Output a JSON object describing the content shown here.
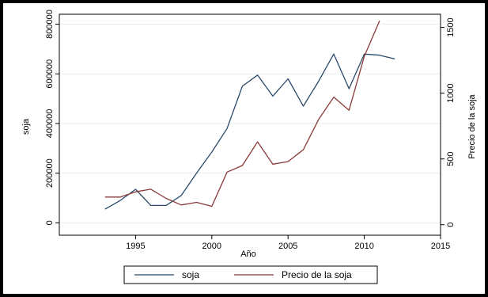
{
  "chart_data": {
    "type": "line",
    "x": [
      1993,
      1994,
      1995,
      1996,
      1997,
      1998,
      1999,
      2000,
      2001,
      2002,
      2003,
      2004,
      2005,
      2006,
      2007,
      2008,
      2009,
      2010,
      2011,
      2012
    ],
    "xlabel": "Año",
    "xlim": [
      1990,
      2015
    ],
    "xticks": [
      1995,
      2000,
      2005,
      2010,
      2015
    ],
    "ylabel_left": "soja",
    "ylim_left": [
      -50000,
      840000
    ],
    "yticks_left": [
      0,
      200000,
      400000,
      600000,
      800000
    ],
    "ylabel_right": "Precio de la soja",
    "ylim_right": [
      -80,
      1600
    ],
    "yticks_right": [
      0,
      500,
      1000,
      1500
    ],
    "grid": true,
    "legend_position": "bottom",
    "series": [
      {
        "name": "soja",
        "axis": "left",
        "color": "#2b4a6b",
        "values": [
          55000,
          90000,
          135000,
          70000,
          70000,
          110000,
          200000,
          285000,
          380000,
          550000,
          595000,
          510000,
          580000,
          470000,
          570000,
          680000,
          540000,
          680000,
          675000,
          660000
        ]
      },
      {
        "name": "Precio de la soja",
        "axis": "right",
        "color": "#8b3a3a",
        "values": [
          210,
          210,
          250,
          270,
          200,
          150,
          170,
          140,
          400,
          450,
          630,
          460,
          480,
          570,
          800,
          970,
          870,
          1280,
          1550,
          null
        ]
      }
    ]
  }
}
